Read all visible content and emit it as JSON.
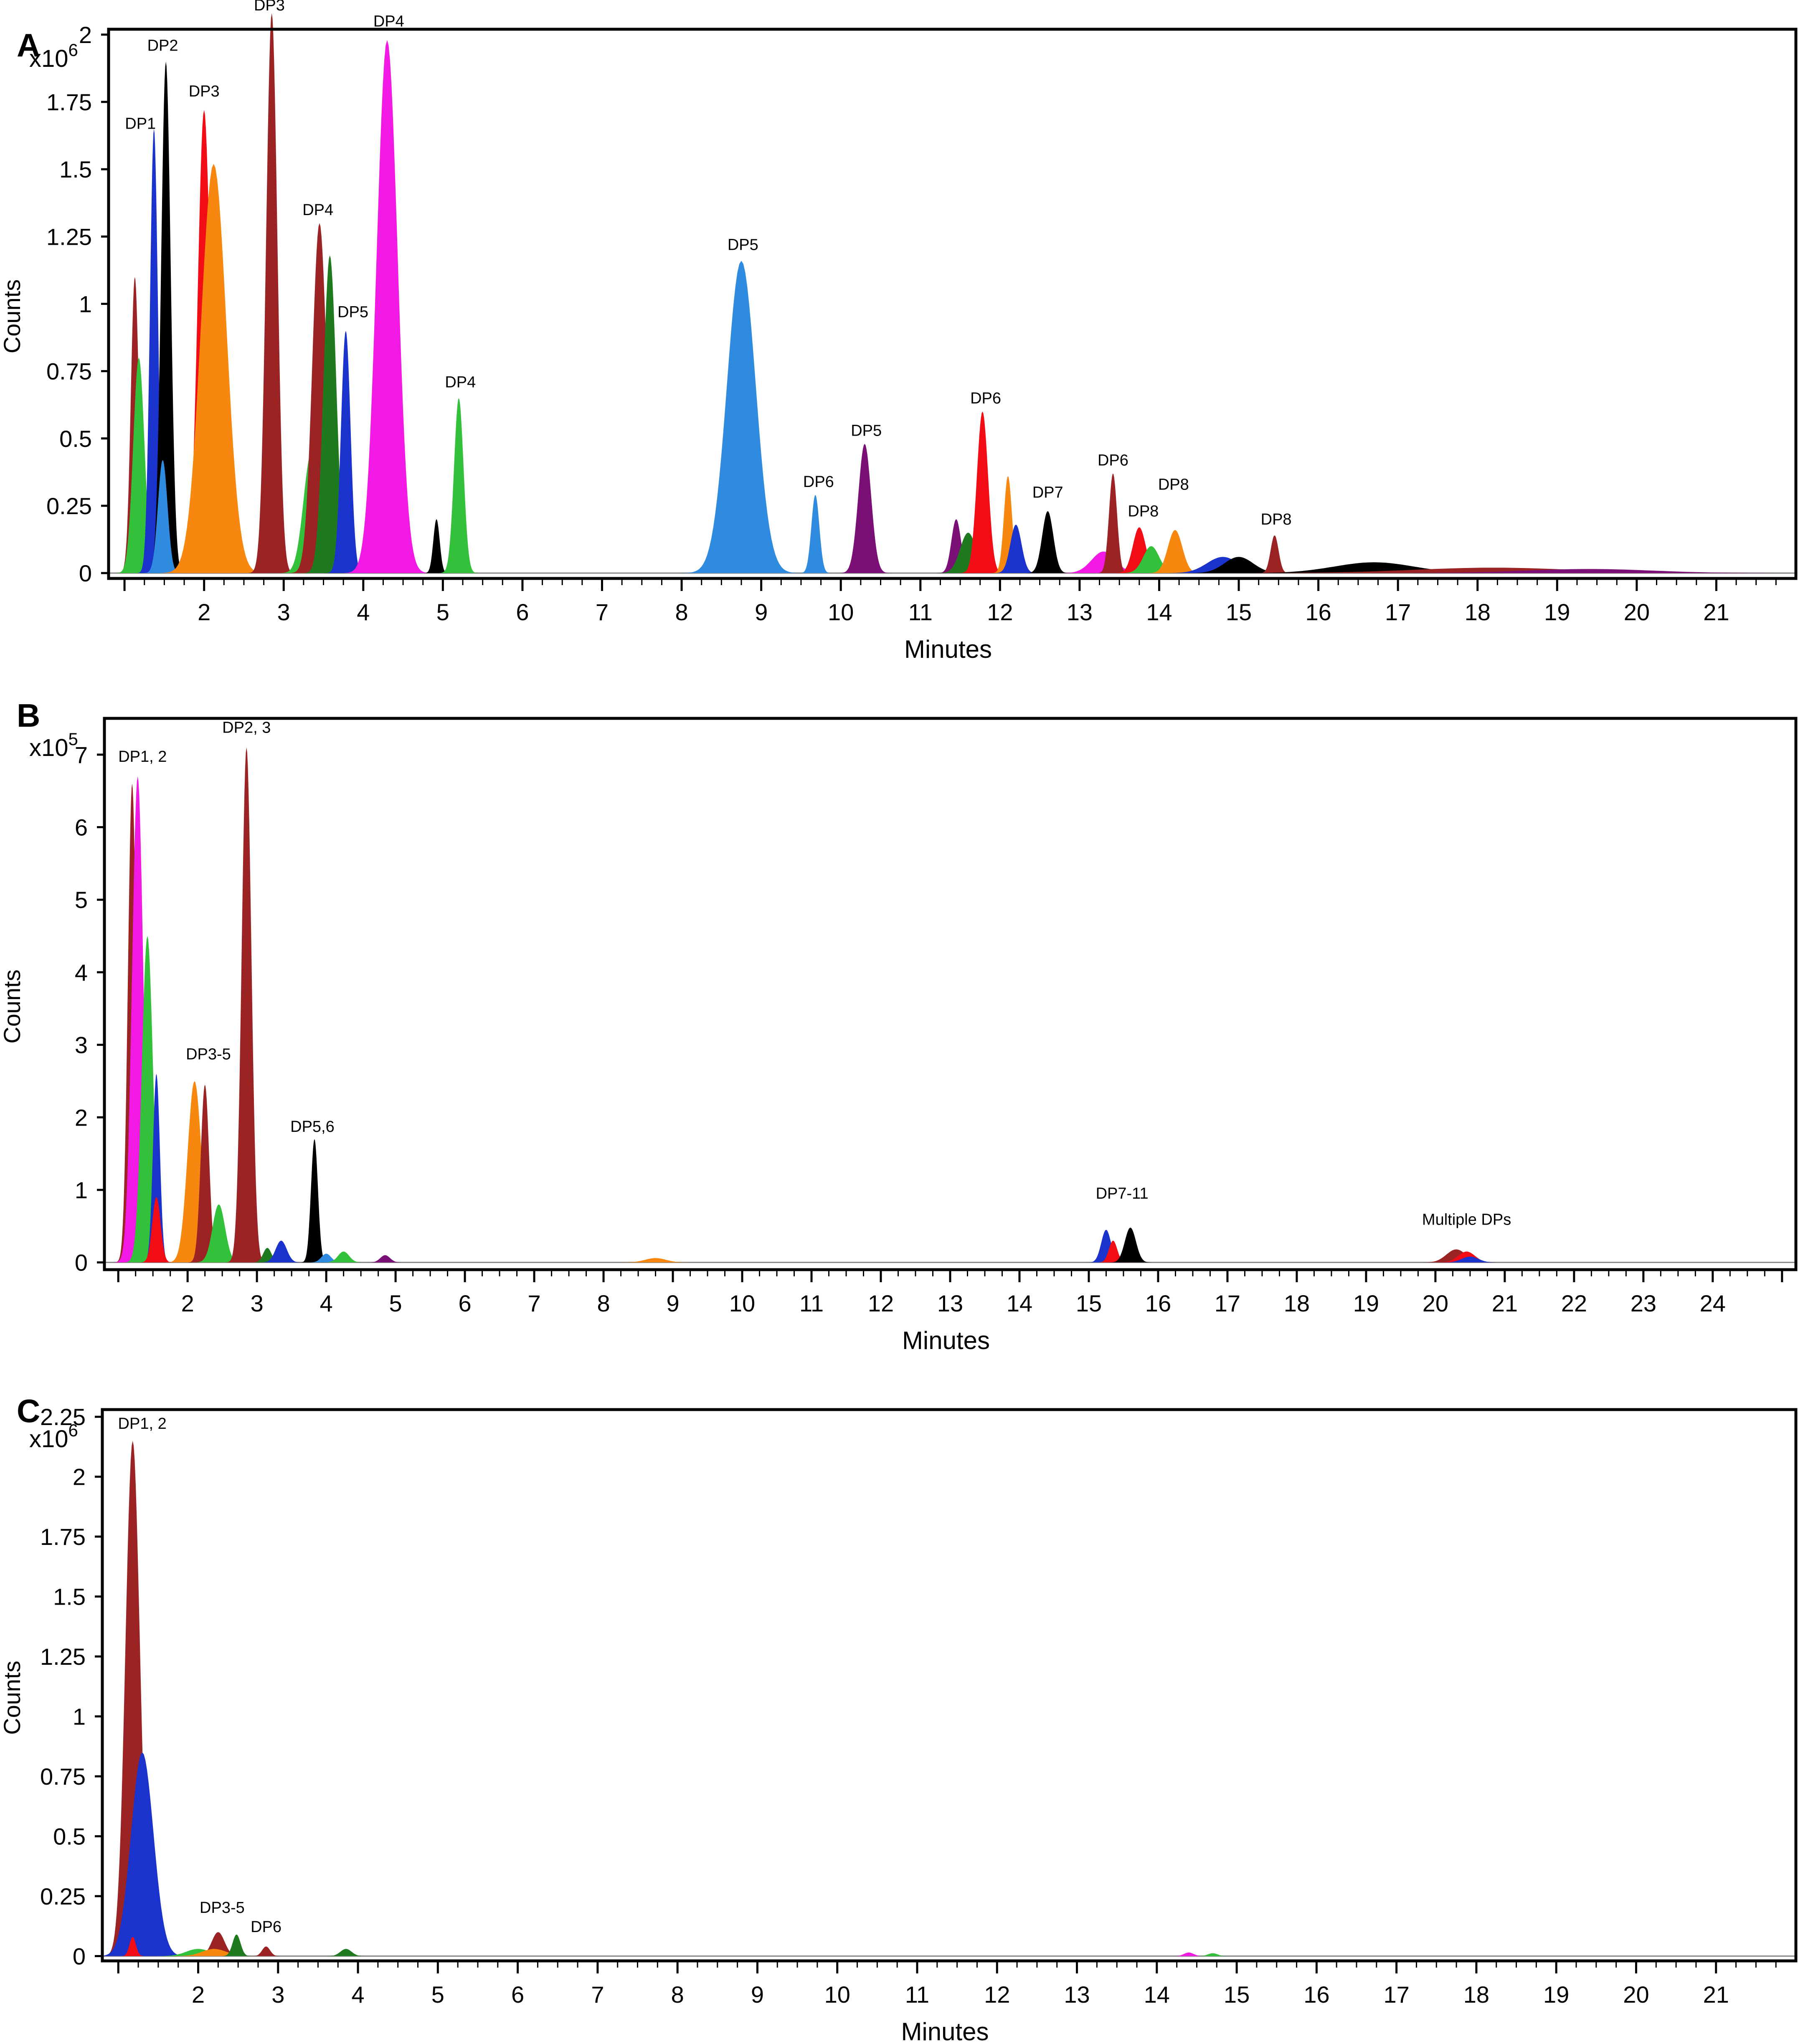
{
  "panels_meta": [
    "A",
    "B",
    "C"
  ],
  "colors": {
    "maroon": "#9B2323",
    "green": "#33C03A",
    "blue": "#1A33CC",
    "black": "#000000",
    "red": "#F20D16",
    "orange": "#F7870F",
    "magenta": "#F219E5",
    "skyblue": "#2F8BE0",
    "purple": "#7A1076",
    "darkgreen": "#1F7A1F"
  },
  "chart_data": [
    {
      "type": "area",
      "panel_label": "A",
      "exponent_label": "x10",
      "exponent_power": "6",
      "ylabel": "Counts",
      "xlabel": "Minutes",
      "xlim": [
        0.8,
        22
      ],
      "ylim": [
        -0.02,
        2.02
      ],
      "x_ticks": [
        "2",
        "3",
        "4",
        "5",
        "6",
        "7",
        "8",
        "9",
        "10",
        "11",
        "12",
        "13",
        "14",
        "15",
        "16",
        "17",
        "18",
        "19",
        "20",
        "21"
      ],
      "y_ticks": [
        "0",
        "0.25",
        "0.5",
        "0.75",
        "1",
        "1.25",
        "1.5",
        "1.75",
        "2"
      ],
      "y_tick_values": [
        0,
        0.25,
        0.5,
        0.75,
        1,
        1.25,
        1.5,
        1.75,
        2
      ],
      "peaks": [
        {
          "x": 1.13,
          "y": 1.1,
          "w": 0.05,
          "color": "maroon"
        },
        {
          "x": 1.18,
          "y": 0.8,
          "w": 0.07,
          "color": "green"
        },
        {
          "x": 1.37,
          "y": 1.65,
          "w": 0.05,
          "color": "blue"
        },
        {
          "x": 1.52,
          "y": 1.9,
          "w": 0.06,
          "color": "black"
        },
        {
          "x": 1.48,
          "y": 0.42,
          "w": 0.06,
          "color": "skyblue"
        },
        {
          "x": 2.0,
          "y": 1.72,
          "w": 0.08,
          "color": "red"
        },
        {
          "x": 2.12,
          "y": 1.52,
          "w": 0.16,
          "color": "orange"
        },
        {
          "x": 2.85,
          "y": 2.08,
          "w": 0.07,
          "color": "maroon"
        },
        {
          "x": 3.35,
          "y": 0.45,
          "w": 0.1,
          "color": "green"
        },
        {
          "x": 3.45,
          "y": 1.3,
          "w": 0.09,
          "color": "maroon"
        },
        {
          "x": 3.58,
          "y": 1.18,
          "w": 0.08,
          "color": "darkgreen"
        },
        {
          "x": 3.78,
          "y": 0.9,
          "w": 0.06,
          "color": "blue"
        },
        {
          "x": 4.3,
          "y": 1.98,
          "w": 0.13,
          "color": "magenta"
        },
        {
          "x": 4.92,
          "y": 0.2,
          "w": 0.04,
          "color": "black"
        },
        {
          "x": 5.2,
          "y": 0.65,
          "w": 0.06,
          "color": "green"
        },
        {
          "x": 8.75,
          "y": 1.16,
          "w": 0.18,
          "color": "skyblue"
        },
        {
          "x": 9.68,
          "y": 0.29,
          "w": 0.05,
          "color": "skyblue"
        },
        {
          "x": 10.3,
          "y": 0.48,
          "w": 0.08,
          "color": "purple"
        },
        {
          "x": 11.45,
          "y": 0.2,
          "w": 0.06,
          "color": "purple"
        },
        {
          "x": 11.6,
          "y": 0.15,
          "w": 0.1,
          "color": "darkgreen"
        },
        {
          "x": 11.78,
          "y": 0.6,
          "w": 0.07,
          "color": "red"
        },
        {
          "x": 12.1,
          "y": 0.36,
          "w": 0.05,
          "color": "orange"
        },
        {
          "x": 12.2,
          "y": 0.18,
          "w": 0.07,
          "color": "blue"
        },
        {
          "x": 12.6,
          "y": 0.23,
          "w": 0.07,
          "color": "black"
        },
        {
          "x": 13.3,
          "y": 0.08,
          "w": 0.15,
          "color": "magenta"
        },
        {
          "x": 13.42,
          "y": 0.37,
          "w": 0.05,
          "color": "maroon"
        },
        {
          "x": 13.75,
          "y": 0.17,
          "w": 0.08,
          "color": "red"
        },
        {
          "x": 13.9,
          "y": 0.1,
          "w": 0.1,
          "color": "green"
        },
        {
          "x": 14.2,
          "y": 0.16,
          "w": 0.09,
          "color": "orange"
        },
        {
          "x": 14.8,
          "y": 0.06,
          "w": 0.2,
          "color": "blue"
        },
        {
          "x": 15.0,
          "y": 0.06,
          "w": 0.18,
          "color": "black"
        },
        {
          "x": 15.45,
          "y": 0.14,
          "w": 0.05,
          "color": "maroon"
        },
        {
          "x": 16.7,
          "y": 0.04,
          "w": 0.5,
          "color": "black"
        },
        {
          "x": 18.2,
          "y": 0.02,
          "w": 1.0,
          "color": "maroon"
        },
        {
          "x": 19.4,
          "y": 0.015,
          "w": 0.8,
          "color": "purple"
        }
      ],
      "annotations": [
        {
          "text": "DP1",
          "x": 1.2,
          "y": 1.65
        },
        {
          "text": "DP2",
          "x": 1.48,
          "y": 1.94
        },
        {
          "text": "DP3",
          "x": 2.0,
          "y": 1.77
        },
        {
          "text": "DP3",
          "x": 2.82,
          "y": 2.09
        },
        {
          "text": "DP4",
          "x": 4.32,
          "y": 2.03
        },
        {
          "text": "DP4",
          "x": 3.43,
          "y": 1.33
        },
        {
          "text": "DP5",
          "x": 3.87,
          "y": 0.95
        },
        {
          "text": "DP4",
          "x": 5.22,
          "y": 0.69
        },
        {
          "text": "DP5",
          "x": 8.77,
          "y": 1.2
        },
        {
          "text": "DP6",
          "x": 9.72,
          "y": 0.32
        },
        {
          "text": "DP5",
          "x": 10.32,
          "y": 0.51
        },
        {
          "text": "DP6",
          "x": 11.82,
          "y": 0.63
        },
        {
          "text": "DP7",
          "x": 12.6,
          "y": 0.28
        },
        {
          "text": "DP6",
          "x": 13.42,
          "y": 0.4
        },
        {
          "text": "DP8",
          "x": 13.8,
          "y": 0.21
        },
        {
          "text": "DP8",
          "x": 14.18,
          "y": 0.31
        },
        {
          "text": "DP8",
          "x": 15.47,
          "y": 0.18
        }
      ]
    },
    {
      "type": "area",
      "panel_label": "B",
      "exponent_label": "x10",
      "exponent_power": "5",
      "ylabel": "Counts",
      "xlabel": "Minutes",
      "xlim": [
        0.8,
        25.2
      ],
      "ylim": [
        -0.1,
        7.5
      ],
      "x_ticks": [
        "2",
        "3",
        "4",
        "5",
        "6",
        "7",
        "8",
        "9",
        "10",
        "11",
        "12",
        "13",
        "14",
        "15",
        "16",
        "17",
        "18",
        "19",
        "20",
        "21",
        "22",
        "23",
        "24"
      ],
      "y_ticks": [
        "0",
        "1",
        "2",
        "3",
        "4",
        "5",
        "6",
        "7"
      ],
      "y_tick_values": [
        0,
        1,
        2,
        3,
        4,
        5,
        6,
        7
      ],
      "peaks": [
        {
          "x": 1.2,
          "y": 6.6,
          "w": 0.06,
          "color": "maroon"
        },
        {
          "x": 1.28,
          "y": 6.7,
          "w": 0.08,
          "color": "magenta"
        },
        {
          "x": 1.42,
          "y": 4.5,
          "w": 0.08,
          "color": "green"
        },
        {
          "x": 1.55,
          "y": 2.6,
          "w": 0.05,
          "color": "blue"
        },
        {
          "x": 1.55,
          "y": 0.9,
          "w": 0.06,
          "color": "red"
        },
        {
          "x": 2.1,
          "y": 2.5,
          "w": 0.1,
          "color": "orange"
        },
        {
          "x": 2.25,
          "y": 2.45,
          "w": 0.06,
          "color": "maroon"
        },
        {
          "x": 2.45,
          "y": 0.8,
          "w": 0.09,
          "color": "green"
        },
        {
          "x": 2.85,
          "y": 7.1,
          "w": 0.07,
          "color": "maroon"
        },
        {
          "x": 3.15,
          "y": 0.2,
          "w": 0.06,
          "color": "darkgreen"
        },
        {
          "x": 3.35,
          "y": 0.3,
          "w": 0.08,
          "color": "blue"
        },
        {
          "x": 3.83,
          "y": 1.7,
          "w": 0.05,
          "color": "black"
        },
        {
          "x": 4.0,
          "y": 0.12,
          "w": 0.07,
          "color": "skyblue"
        },
        {
          "x": 4.25,
          "y": 0.15,
          "w": 0.08,
          "color": "green"
        },
        {
          "x": 4.85,
          "y": 0.1,
          "w": 0.07,
          "color": "purple"
        },
        {
          "x": 8.75,
          "y": 0.06,
          "w": 0.15,
          "color": "orange"
        },
        {
          "x": 15.25,
          "y": 0.45,
          "w": 0.07,
          "color": "blue"
        },
        {
          "x": 15.35,
          "y": 0.3,
          "w": 0.06,
          "color": "red"
        },
        {
          "x": 15.55,
          "y": 0.28,
          "w": 0.06,
          "color": "magenta"
        },
        {
          "x": 15.6,
          "y": 0.48,
          "w": 0.08,
          "color": "black"
        },
        {
          "x": 20.3,
          "y": 0.18,
          "w": 0.14,
          "color": "maroon"
        },
        {
          "x": 20.45,
          "y": 0.15,
          "w": 0.12,
          "color": "red"
        },
        {
          "x": 20.5,
          "y": 0.08,
          "w": 0.12,
          "color": "blue"
        }
      ],
      "annotations": [
        {
          "text": "DP1, 2",
          "x": 1.35,
          "y": 6.9
        },
        {
          "text": "DP2, 3",
          "x": 2.85,
          "y": 7.3
        },
        {
          "text": "DP3-5",
          "x": 2.3,
          "y": 2.8
        },
        {
          "text": "DP5,6",
          "x": 3.8,
          "y": 1.8
        },
        {
          "text": "DP7-11",
          "x": 15.48,
          "y": 0.88
        },
        {
          "text": "Multiple DPs",
          "x": 20.45,
          "y": 0.52
        }
      ]
    },
    {
      "type": "area",
      "panel_label": "C",
      "exponent_label": "x10",
      "exponent_power": "6",
      "ylabel": "Counts",
      "xlabel": "Minutes",
      "xlim": [
        0.8,
        22
      ],
      "ylim": [
        -0.02,
        2.28
      ],
      "x_ticks": [
        "2",
        "3",
        "4",
        "5",
        "6",
        "7",
        "8",
        "9",
        "10",
        "11",
        "12",
        "13",
        "14",
        "15",
        "16",
        "17",
        "18",
        "19",
        "20",
        "21"
      ],
      "y_ticks": [
        "0",
        "0.25",
        "0.5",
        "0.75",
        "1",
        "1.25",
        "1.5",
        "1.75",
        "2",
        "2.25"
      ],
      "y_tick_values": [
        0,
        0.25,
        0.5,
        0.75,
        1,
        1.25,
        1.5,
        1.75,
        2,
        2.25
      ],
      "peaks": [
        {
          "x": 1.18,
          "y": 2.15,
          "w": 0.09,
          "color": "maroon"
        },
        {
          "x": 1.3,
          "y": 0.85,
          "w": 0.14,
          "color": "blue"
        },
        {
          "x": 1.18,
          "y": 0.08,
          "w": 0.04,
          "color": "red"
        },
        {
          "x": 2.0,
          "y": 0.03,
          "w": 0.15,
          "color": "green"
        },
        {
          "x": 2.25,
          "y": 0.1,
          "w": 0.08,
          "color": "maroon"
        },
        {
          "x": 2.2,
          "y": 0.03,
          "w": 0.15,
          "color": "orange"
        },
        {
          "x": 2.48,
          "y": 0.09,
          "w": 0.05,
          "color": "darkgreen"
        },
        {
          "x": 2.85,
          "y": 0.04,
          "w": 0.05,
          "color": "maroon"
        },
        {
          "x": 3.85,
          "y": 0.03,
          "w": 0.07,
          "color": "darkgreen"
        },
        {
          "x": 14.4,
          "y": 0.015,
          "w": 0.06,
          "color": "magenta"
        },
        {
          "x": 14.7,
          "y": 0.012,
          "w": 0.06,
          "color": "green"
        }
      ],
      "annotations": [
        {
          "text": "DP1, 2",
          "x": 1.3,
          "y": 2.2
        },
        {
          "text": "DP3-5",
          "x": 2.3,
          "y": 0.18
        },
        {
          "text": "DP6",
          "x": 2.85,
          "y": 0.1
        }
      ]
    }
  ]
}
